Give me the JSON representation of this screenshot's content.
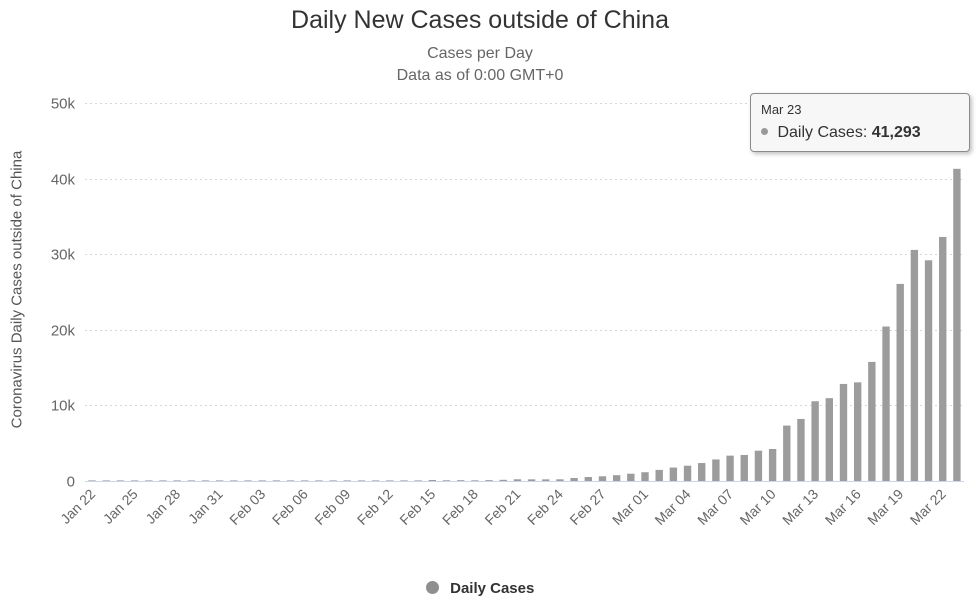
{
  "chart": {
    "title": "Daily New Cases outside of China",
    "subtitle_line1": "Cases per Day",
    "subtitle_line2": "Data as of 0:00 GMT+0",
    "legend_label": "Daily Cases",
    "colors": {
      "bar": "#9c9c9c",
      "gridline": "#d6d6d6",
      "axis_line": "#ccd6eb",
      "axis_label": "#666666",
      "legend_marker": "#8f8f8f"
    }
  },
  "tooltip": {
    "date": "Mar 23",
    "series_label": "Daily Cases:",
    "value": "41,293"
  },
  "chart_data": {
    "type": "bar",
    "title": "Daily New Cases outside of China",
    "subtitle": [
      "Cases per Day",
      "Data as of 0:00 GMT+0"
    ],
    "xlabel": "",
    "ylabel": "Coronavirus Daily Cases outside of China",
    "ylim": [
      0,
      50000
    ],
    "yticks": [
      0,
      10000,
      20000,
      30000,
      40000,
      50000
    ],
    "ytick_labels": [
      "0",
      "10k",
      "20k",
      "30k",
      "40k",
      "50k"
    ],
    "x_tick_every": 3,
    "grid": true,
    "legend": [
      "Daily Cases"
    ],
    "legend_position": "bottom",
    "series_name": "Daily Cases",
    "categories": [
      "Jan 22",
      "Jan 23",
      "Jan 24",
      "Jan 25",
      "Jan 26",
      "Jan 27",
      "Jan 28",
      "Jan 29",
      "Jan 30",
      "Jan 31",
      "Feb 01",
      "Feb 02",
      "Feb 03",
      "Feb 04",
      "Feb 05",
      "Feb 06",
      "Feb 07",
      "Feb 08",
      "Feb 09",
      "Feb 10",
      "Feb 11",
      "Feb 12",
      "Feb 13",
      "Feb 14",
      "Feb 15",
      "Feb 16",
      "Feb 17",
      "Feb 18",
      "Feb 19",
      "Feb 20",
      "Feb 21",
      "Feb 22",
      "Feb 23",
      "Feb 24",
      "Feb 25",
      "Feb 26",
      "Feb 27",
      "Feb 28",
      "Feb 29",
      "Mar 01",
      "Mar 02",
      "Mar 03",
      "Mar 04",
      "Mar 05",
      "Mar 06",
      "Mar 07",
      "Mar 08",
      "Mar 09",
      "Mar 10",
      "Mar 11",
      "Mar 12",
      "Mar 13",
      "Mar 14",
      "Mar 15",
      "Mar 16",
      "Mar 17",
      "Mar 18",
      "Mar 19",
      "Mar 20",
      "Mar 21",
      "Mar 22",
      "Mar 23"
    ],
    "values": [
      4,
      3,
      6,
      10,
      15,
      15,
      20,
      11,
      19,
      25,
      24,
      14,
      12,
      25,
      27,
      28,
      26,
      24,
      21,
      60,
      4,
      46,
      67,
      58,
      131,
      94,
      104,
      89,
      117,
      158,
      229,
      220,
      220,
      225,
      396,
      528,
      624,
      768,
      965,
      1160,
      1468,
      1776,
      2025,
      2374,
      2852,
      3353,
      3443,
      4009,
      4231,
      7330,
      8210,
      10549,
      10959,
      12839,
      13049,
      15753,
      20434,
      26069,
      30567,
      29192,
      32283,
      41293
    ],
    "highlighted_point": {
      "category": "Mar 23",
      "value": 41293
    }
  }
}
